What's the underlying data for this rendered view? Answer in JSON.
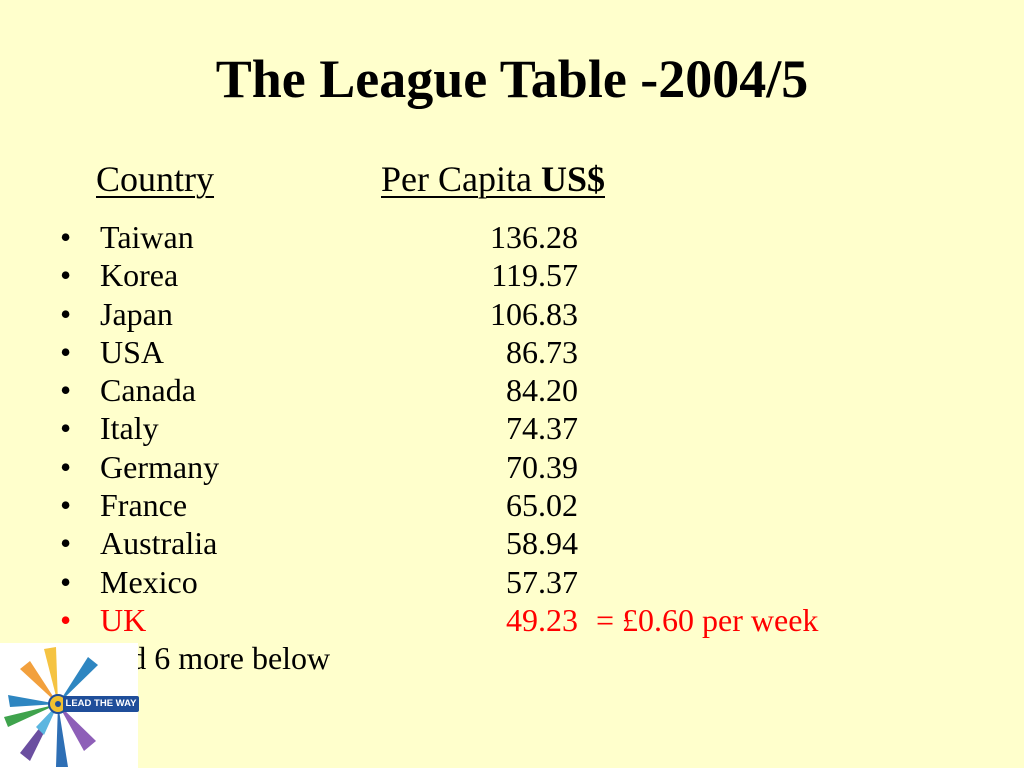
{
  "slide": {
    "title": "The League Table -2004/5",
    "headers": {
      "country": "Country",
      "per_capita": "Per Capita ",
      "currency": "US$"
    },
    "bullet_char": "•",
    "rows": [
      {
        "country": "Taiwan",
        "value": "136.28"
      },
      {
        "country": "Korea",
        "value": "119.57"
      },
      {
        "country": "Japan",
        "value": "106.83"
      },
      {
        "country": "USA",
        "value": "86.73"
      },
      {
        "country": "Canada",
        "value": "84.20"
      },
      {
        "country": "Italy",
        "value": "74.37"
      },
      {
        "country": "Germany",
        "value": "70.39"
      },
      {
        "country": "France",
        "value": "65.02"
      },
      {
        "country": "Australia",
        "value": "58.94"
      },
      {
        "country": "Mexico",
        "value": "57.37"
      },
      {
        "country": "UK",
        "value": "49.23",
        "note": "=    £0.60 per week",
        "highlight_color": "#FF0000"
      },
      {
        "country": "and 6 more below",
        "value": ""
      }
    ],
    "logo": {
      "text": "LEAD THE WAY",
      "icon": "rotary-lead-the-way-logo"
    },
    "colors": {
      "background": "#FFFFCC",
      "text": "#000000",
      "highlight": "#FF0000"
    }
  }
}
